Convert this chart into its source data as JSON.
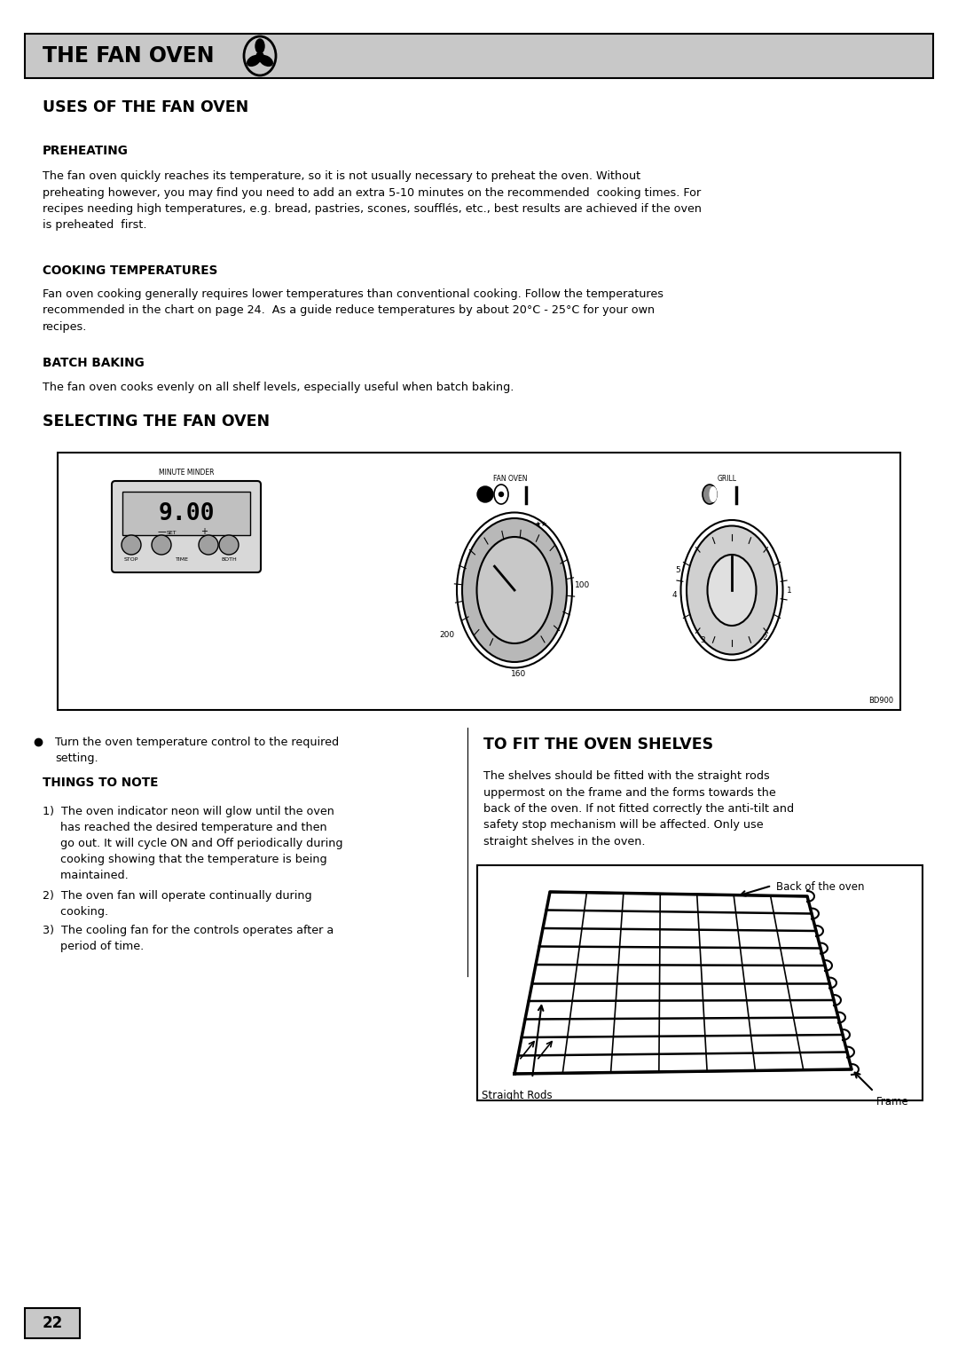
{
  "page_bg": "#ffffff",
  "header_bg": "#c8c8c8",
  "header_text": "THE FAN OVEN",
  "title1": "USES OF THE FAN OVEN",
  "section1_heading1": "PREHEATING",
  "section1_text1": "The fan oven quickly reaches its temperature, so it is not usually necessary to preheat the oven. Without\npreheating however, you may find you need to add an extra 5-10 minutes on the recommended  cooking times. For\nrecipes needing high temperatures, e.g. bread, pastries, scones, soufflés, etc., best results are achieved if the oven\nis preheated  first.",
  "section1_heading2": "COOKING TEMPERATURES",
  "section1_text2": "Fan oven cooking generally requires lower temperatures than conventional cooking. Follow the temperatures\nrecommended in the chart on page 24.  As a guide reduce temperatures by about 20°C - 25°C for your own\nrecipes.",
  "section1_heading3": "BATCH BAKING",
  "section1_text3": "The fan oven cooks evenly on all shelf levels, especially useful when batch baking.",
  "title2": "SELECTING THE FAN OVEN",
  "bullet1": "Turn the oven temperature control to the required\nsetting.",
  "things_to_note": "THINGS TO NOTE",
  "note1": "1)  The oven indicator neon will glow until the oven\n     has reached the desired temperature and then\n     go out. It will cycle ON and Off periodically during\n     cooking showing that the temperature is being\n     maintained.",
  "note2": "2)  The oven fan will operate continually during\n     cooking.",
  "note3": "3)  The cooling fan for the controls operates after a\n     period of time.",
  "title3": "TO FIT THE OVEN SHELVES",
  "fit_text": "The shelves should be fitted with the straight rods\nuppermost on the frame and the forms towards the\nback of the oven. If not fitted correctly the anti-tilt and\nsafety stop mechanism will be affected. Only use\nstraight shelves in the oven.",
  "label_straight_rods": "Straight Rods",
  "label_back": "Back of the oven",
  "label_frame": "Frame",
  "page_number": "22",
  "bd_label": "BD900"
}
